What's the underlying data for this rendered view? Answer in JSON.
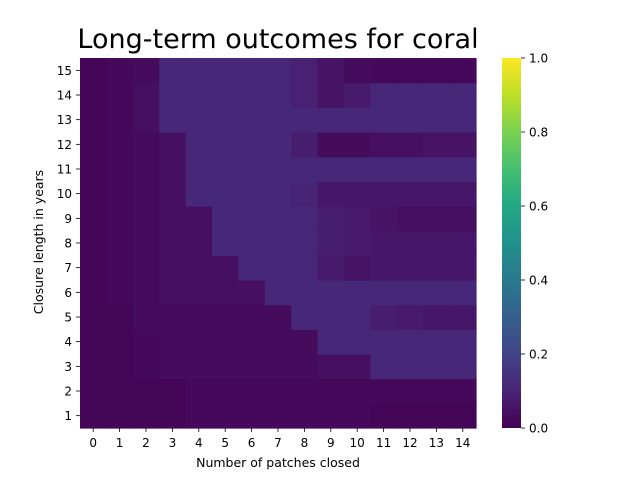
{
  "chart_data": {
    "type": "heatmap",
    "title": "Long-term outcomes for coral",
    "xlabel": "Number of patches closed",
    "ylabel": "Closure length in years",
    "x": [
      "0",
      "1",
      "2",
      "3",
      "4",
      "5",
      "6",
      "7",
      "8",
      "9",
      "10",
      "11",
      "12",
      "13",
      "14"
    ],
    "y": [
      "1",
      "2",
      "3",
      "4",
      "5",
      "6",
      "7",
      "8",
      "9",
      "10",
      "11",
      "12",
      "13",
      "14",
      "15"
    ],
    "colorscale": "viridis",
    "vmin": 0.0,
    "vmax": 1.0,
    "colorbar_ticks": [
      "0.0",
      "0.2",
      "0.4",
      "0.6",
      "0.8",
      "1.0"
    ],
    "values": [
      [
        0.01,
        0.01,
        0.01,
        0.01,
        0.02,
        0.02,
        0.02,
        0.02,
        0.02,
        0.02,
        0.02,
        0.01,
        0.01,
        0.01,
        0.01
      ],
      [
        0.01,
        0.01,
        0.01,
        0.01,
        0.02,
        0.02,
        0.02,
        0.02,
        0.02,
        0.02,
        0.02,
        0.02,
        0.02,
        0.02,
        0.02
      ],
      [
        0.01,
        0.01,
        0.02,
        0.03,
        0.03,
        0.03,
        0.03,
        0.03,
        0.03,
        0.04,
        0.04,
        0.11,
        0.11,
        0.11,
        0.11
      ],
      [
        0.01,
        0.01,
        0.02,
        0.03,
        0.03,
        0.03,
        0.03,
        0.03,
        0.03,
        0.11,
        0.11,
        0.11,
        0.11,
        0.11,
        0.11
      ],
      [
        0.01,
        0.01,
        0.03,
        0.03,
        0.03,
        0.03,
        0.03,
        0.03,
        0.11,
        0.11,
        0.11,
        0.08,
        0.07,
        0.06,
        0.06
      ],
      [
        0.01,
        0.02,
        0.03,
        0.04,
        0.04,
        0.04,
        0.04,
        0.11,
        0.11,
        0.11,
        0.11,
        0.11,
        0.11,
        0.11,
        0.11
      ],
      [
        0.01,
        0.02,
        0.03,
        0.04,
        0.04,
        0.04,
        0.11,
        0.11,
        0.11,
        0.07,
        0.05,
        0.06,
        0.06,
        0.06,
        0.06
      ],
      [
        0.01,
        0.02,
        0.03,
        0.04,
        0.04,
        0.11,
        0.11,
        0.11,
        0.11,
        0.08,
        0.07,
        0.06,
        0.06,
        0.06,
        0.06
      ],
      [
        0.01,
        0.02,
        0.03,
        0.04,
        0.04,
        0.11,
        0.11,
        0.11,
        0.11,
        0.08,
        0.07,
        0.05,
        0.04,
        0.04,
        0.04
      ],
      [
        0.01,
        0.02,
        0.03,
        0.04,
        0.11,
        0.11,
        0.11,
        0.11,
        0.1,
        0.06,
        0.06,
        0.06,
        0.06,
        0.06,
        0.06
      ],
      [
        0.01,
        0.02,
        0.03,
        0.04,
        0.11,
        0.11,
        0.11,
        0.11,
        0.11,
        0.11,
        0.11,
        0.11,
        0.11,
        0.11,
        0.11
      ],
      [
        0.01,
        0.02,
        0.03,
        0.04,
        0.11,
        0.11,
        0.11,
        0.11,
        0.08,
        0.03,
        0.03,
        0.04,
        0.04,
        0.05,
        0.05
      ],
      [
        0.01,
        0.02,
        0.04,
        0.11,
        0.11,
        0.11,
        0.11,
        0.11,
        0.11,
        0.11,
        0.11,
        0.11,
        0.11,
        0.11,
        0.11
      ],
      [
        0.01,
        0.02,
        0.04,
        0.11,
        0.11,
        0.11,
        0.11,
        0.11,
        0.09,
        0.05,
        0.07,
        0.11,
        0.11,
        0.11,
        0.11
      ],
      [
        0.01,
        0.02,
        0.03,
        0.11,
        0.11,
        0.11,
        0.11,
        0.11,
        0.09,
        0.05,
        0.03,
        0.02,
        0.02,
        0.02,
        0.02
      ]
    ]
  }
}
